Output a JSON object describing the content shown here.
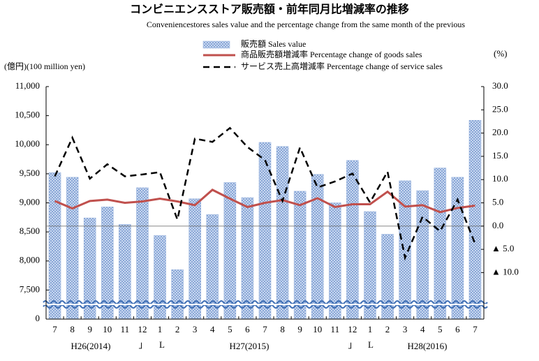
{
  "chart_data": {
    "type": "combo",
    "title": "コンビニエンスストア販売額・前年同月比増減率の推移",
    "subtitle": "Conveniencestores sales value and the percentage change from the same month of the previous",
    "y_label": "(億円)(100 million yen)",
    "y2_label": "(%)",
    "categories": [
      "7",
      "8",
      "9",
      "10",
      "11",
      "12",
      "1",
      "2",
      "3",
      "4",
      "5",
      "6",
      "7",
      "8",
      "9",
      "10",
      "11",
      "12",
      "1",
      "2",
      "3",
      "4",
      "5",
      "6",
      "7"
    ],
    "period_labels": [
      "H26(2014)",
      "H27(2015)",
      "H28(2016)"
    ],
    "separators": [
      "」",
      "L",
      "」",
      "L"
    ],
    "series": [
      {
        "name": "販売額 Sales value",
        "type": "bar",
        "color": "#9fb8e0",
        "values": [
          9520,
          9440,
          8740,
          8930,
          8630,
          9260,
          8440,
          7850,
          9070,
          8800,
          9350,
          9090,
          10040,
          9970,
          9200,
          9490,
          9000,
          9730,
          8850,
          8460,
          9380,
          9210,
          9600,
          9440,
          10420
        ]
      },
      {
        "name": "商品販売額増減率 Percentage change of goods sales",
        "type": "line",
        "axis": "y2",
        "color": "#c0504d",
        "dashed": false,
        "values": [
          5.4,
          3.8,
          5.4,
          5.7,
          5.0,
          5.3,
          5.9,
          5.3,
          4.5,
          7.8,
          5.9,
          4.1,
          5.0,
          5.6,
          4.5,
          6.0,
          4.1,
          4.7,
          4.7,
          7.4,
          4.2,
          4.5,
          3.0,
          3.9,
          4.4
        ]
      },
      {
        "name": "サービス売上高増減率 Percentage change of service sales",
        "type": "line",
        "axis": "y2",
        "color": "#000000",
        "dashed": true,
        "values": [
          10.7,
          19.0,
          10.2,
          13.3,
          10.7,
          11.1,
          11.6,
          1.4,
          18.8,
          18.1,
          21.1,
          17.0,
          14.2,
          5.4,
          16.9,
          8.3,
          9.6,
          11.3,
          5.1,
          11.7,
          -6.8,
          2.0,
          -1.1,
          5.7,
          -3.8
        ]
      }
    ],
    "ylim": [
      0,
      11000
    ],
    "axis_break": [
      0,
      7000
    ],
    "yticks": [
      0,
      {
        "value": 7500,
        "label": "7,500"
      },
      {
        "value": 8000,
        "label": "8,000"
      },
      {
        "value": 8500,
        "label": "8,500"
      },
      {
        "value": 9000,
        "label": "9,000"
      },
      {
        "value": 9500,
        "label": "9,500"
      },
      {
        "value": 10000,
        "label": "10,000"
      },
      {
        "value": 10500,
        "label": "10,500"
      },
      {
        "value": 11000,
        "label": "11,000"
      }
    ],
    "y2lim": [
      -20,
      30
    ],
    "y2ticks": [
      {
        "value": 30,
        "label": "30.0"
      },
      {
        "value": 25,
        "label": "25.0"
      },
      {
        "value": 20,
        "label": "20.0"
      },
      {
        "value": 15,
        "label": "15.0"
      },
      {
        "value": 10,
        "label": "10.0"
      },
      {
        "value": 5,
        "label": "5.0"
      },
      {
        "value": 0,
        "label": "0.0"
      },
      {
        "value": -5,
        "label": "▲ 5.0"
      },
      {
        "value": -10,
        "label": "▲ 10.0"
      }
    ],
    "zero_line_y2": 0
  }
}
